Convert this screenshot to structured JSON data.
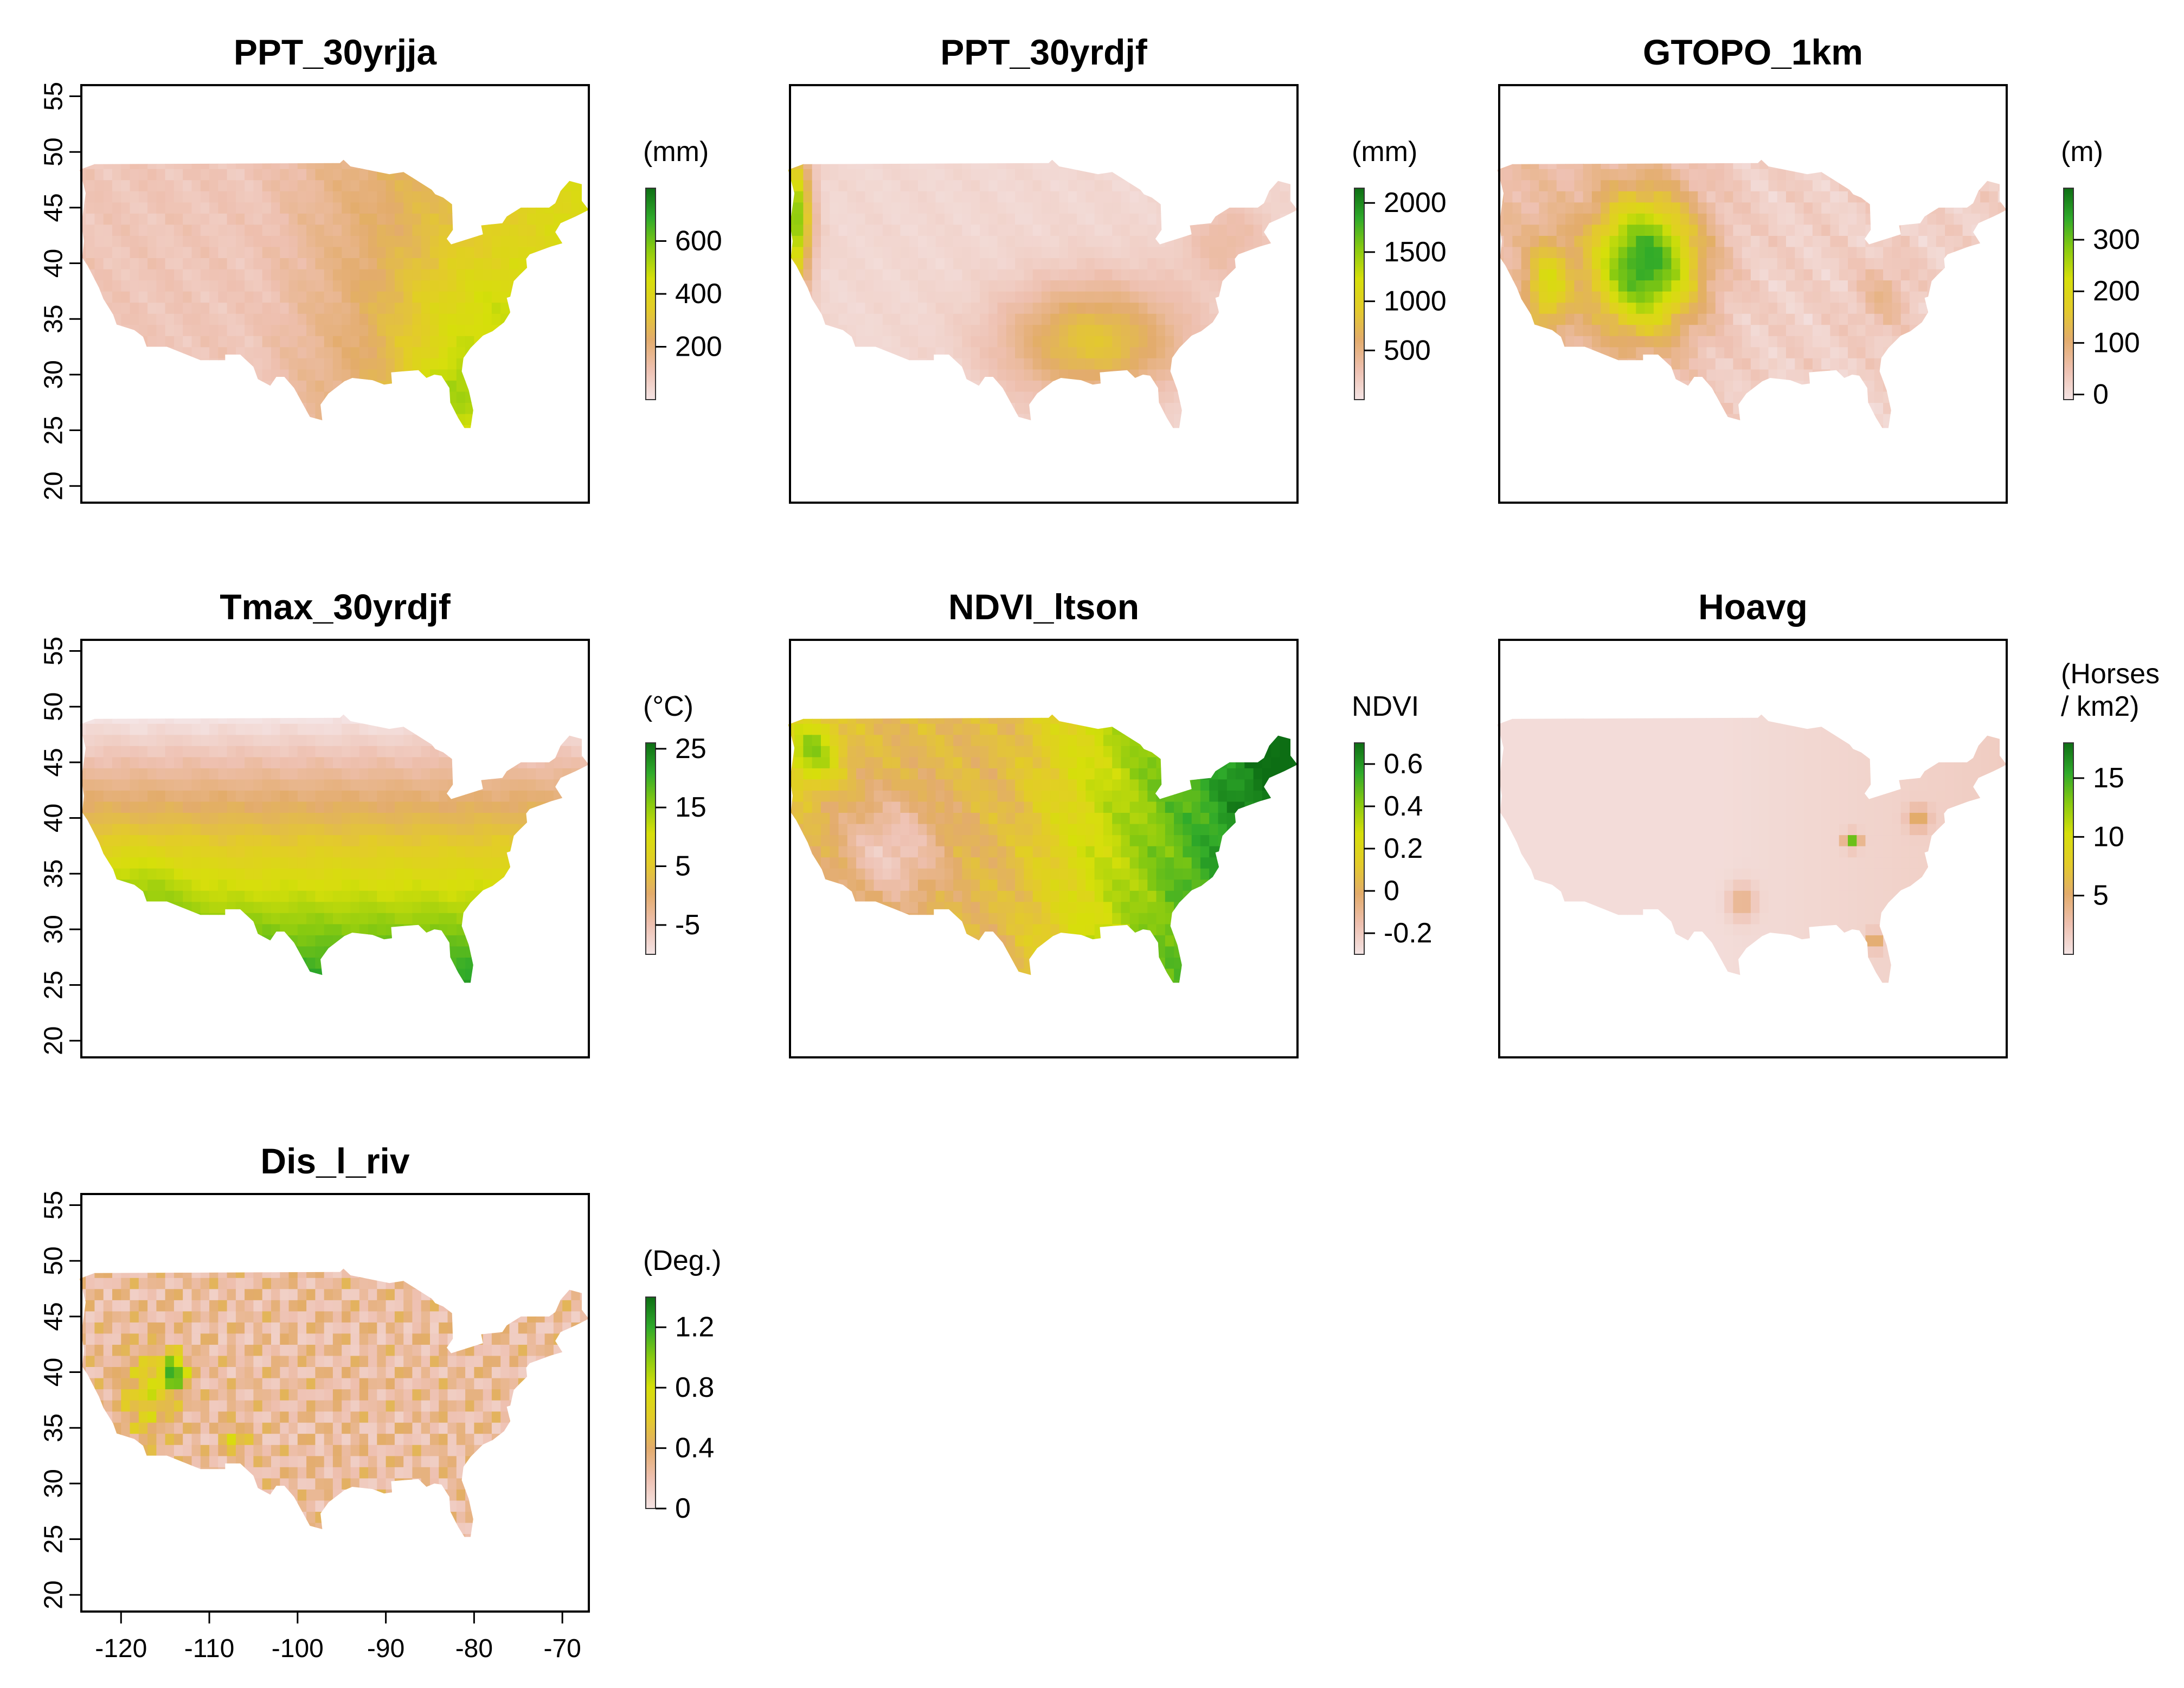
{
  "figure": {
    "palette": {
      "colorbar_stops": [
        "#f4e4e4",
        "#eec0b0",
        "#e3ac6b",
        "#e3cc28",
        "#d6df0a",
        "#88ca10",
        "#2faa2a",
        "#0d6e14"
      ],
      "map_background": "#ffffff",
      "frame": "#000000",
      "text": "#000000"
    },
    "map_extent": {
      "lon": [
        -124.5,
        -67.0
      ],
      "lat": [
        18.5,
        56.0
      ]
    }
  },
  "chart_data": [
    {
      "type": "heatmap",
      "title": "PPT_30yrjja",
      "legend_title": [
        "(mm)"
      ],
      "legend_ticks": [
        "200",
        "400",
        "600"
      ],
      "legend_tick_values": [
        200,
        400,
        600
      ],
      "legend_range": [
        0,
        800
      ],
      "yaxis_ticks": [
        "20",
        "25",
        "30",
        "35",
        "40",
        "45",
        "50",
        "55"
      ],
      "xaxis_ticks": [],
      "ylim": [
        18.5,
        56
      ],
      "xlim": [
        -124.5,
        -67
      ],
      "pattern": "summer precipitation: dry west, wetter east, highest in the southeast and Florida"
    },
    {
      "type": "heatmap",
      "title": "PPT_30yrdjf",
      "legend_title": [
        "(mm)"
      ],
      "legend_ticks": [
        "500",
        "1000",
        "1500",
        "2000"
      ],
      "legend_tick_values": [
        500,
        1000,
        1500,
        2000
      ],
      "legend_range": [
        0,
        2150
      ],
      "yaxis_ticks": [],
      "xaxis_ticks": [],
      "ylim": [
        18.5,
        56
      ],
      "xlim": [
        -124.5,
        -67
      ],
      "pattern": "winter precipitation: wet Pacific coast, dry interior, moderate southeast"
    },
    {
      "type": "heatmap",
      "title": "GTOPO_1km",
      "legend_title": [
        "(m)"
      ],
      "legend_ticks": [
        "0",
        "100",
        "200",
        "300"
      ],
      "legend_tick_values": [
        0,
        100,
        200,
        300
      ],
      "legend_range": [
        -10,
        400
      ],
      "yaxis_ticks": [],
      "xaxis_ticks": [],
      "ylim": [
        18.5,
        56
      ],
      "xlim": [
        -124.5,
        -67
      ],
      "pattern": "elevation: high Rocky Mountains and western plateau, low east"
    },
    {
      "type": "heatmap",
      "title": "Tmax_30yrdjf",
      "legend_title": [
        "(°C)"
      ],
      "legend_ticks": [
        "-5",
        "5",
        "15",
        "25"
      ],
      "legend_tick_values": [
        -5,
        5,
        15,
        25
      ],
      "legend_range": [
        -10,
        26
      ],
      "yaxis_ticks": [
        "20",
        "25",
        "30",
        "35",
        "40",
        "45",
        "50",
        "55"
      ],
      "xaxis_ticks": [],
      "ylim": [
        18.5,
        56
      ],
      "xlim": [
        -124.5,
        -67
      ],
      "pattern": "winter maximum temperature: warm south and southwest, cold north"
    },
    {
      "type": "heatmap",
      "title": "NDVI_ltson",
      "legend_title": [
        "NDVI"
      ],
      "legend_ticks": [
        "-0.2",
        "0",
        "0.2",
        "0.4",
        "0.6"
      ],
      "legend_tick_values": [
        -0.2,
        0,
        0.2,
        0.4,
        0.6
      ],
      "legend_range": [
        -0.3,
        0.7
      ],
      "yaxis_ticks": [],
      "xaxis_ticks": [],
      "ylim": [
        18.5,
        56
      ],
      "xlim": [
        -124.5,
        -67
      ],
      "pattern": "vegetation index: green east and Pacific northwest, sparse dry southwest"
    },
    {
      "type": "heatmap",
      "title": "Hoavg",
      "legend_title": [
        "(Horses",
        "/ km2)"
      ],
      "legend_ticks": [
        "5",
        "10",
        "15"
      ],
      "legend_tick_values": [
        5,
        10,
        15
      ],
      "legend_range": [
        0,
        18
      ],
      "yaxis_ticks": [],
      "xaxis_ticks": [],
      "ylim": [
        18.5,
        56
      ],
      "xlim": [
        -124.5,
        -67
      ],
      "pattern": "horse density: mostly near zero, small hotspots in Kentucky, Texas, Florida"
    },
    {
      "type": "heatmap",
      "title": "Dis_l_riv",
      "legend_title": [
        "(Deg.)"
      ],
      "legend_ticks": [
        "0",
        "0.4",
        "0.8",
        "1.2"
      ],
      "legend_tick_values": [
        0,
        0.4,
        0.8,
        1.2
      ],
      "legend_range": [
        0,
        1.4
      ],
      "yaxis_ticks": [
        "20",
        "25",
        "30",
        "35",
        "40",
        "45",
        "50",
        "55"
      ],
      "xaxis_ticks": [
        "-120",
        "-110",
        "-100",
        "-90",
        "-80",
        "-70"
      ],
      "ylim": [
        18.5,
        56
      ],
      "xlim": [
        -124.5,
        -67
      ],
      "pattern": "distance to large rivers: dense river network, larger distances in the Great Basin"
    }
  ]
}
